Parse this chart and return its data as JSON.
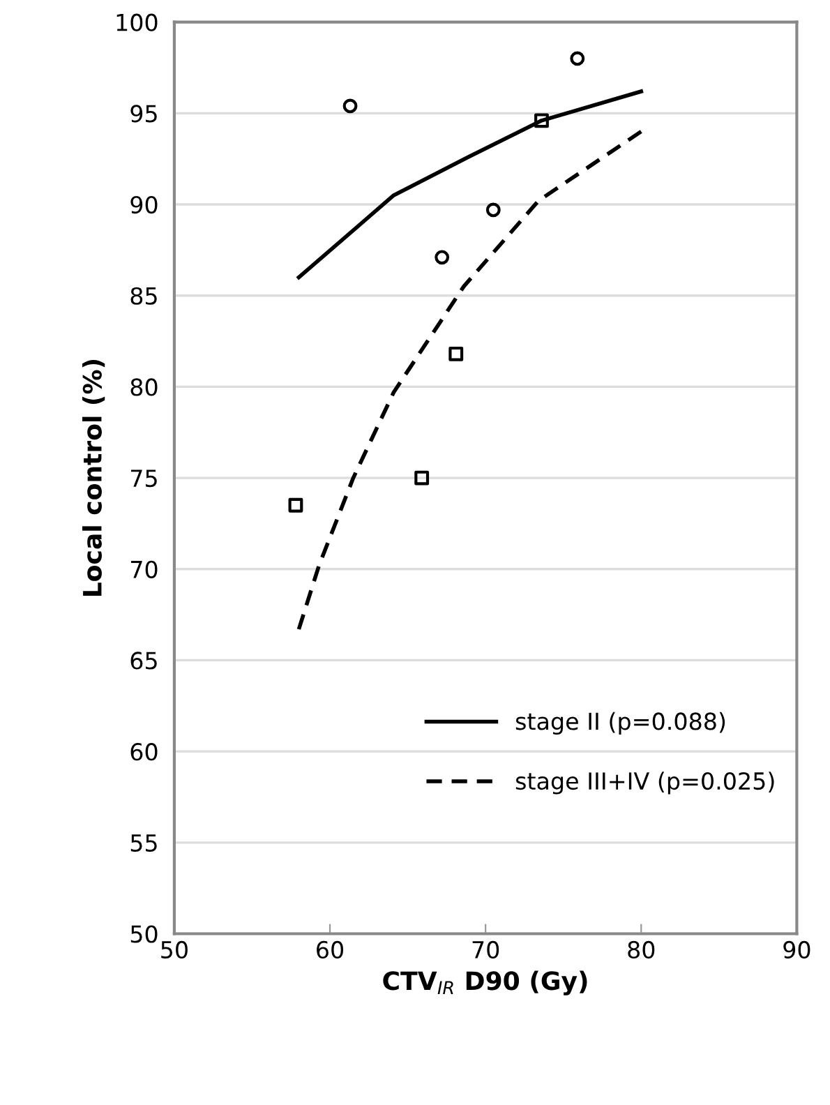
{
  "chart_data": {
    "type": "scatter",
    "xlabel": "CTV$_{IR}$ D90 (Gy)",
    "ylabel": "Local control (%)",
    "xlim": [
      50,
      90
    ],
    "xticks": [
      50,
      60,
      70,
      80,
      90
    ],
    "ylim": [
      50,
      100
    ],
    "yticks": [
      50,
      55,
      60,
      65,
      70,
      75,
      80,
      85,
      90,
      95,
      100
    ],
    "grid": "y",
    "legend": "lower right",
    "series": [
      {
        "marker": "circle",
        "color": "#000000",
        "x": [
          61.3,
          75.9,
          70.5,
          67.2
        ],
        "values": [
          95.4,
          98.0,
          89.7,
          87.1
        ]
      },
      {
        "marker": "square",
        "color": "#000000",
        "x": [
          73.6,
          68.1,
          65.9,
          57.8
        ],
        "values": [
          94.6,
          81.8,
          75.0,
          73.5
        ]
      },
      {
        "type": "line",
        "name": "stage II (p=0.088)",
        "line_style": "solid",
        "marker": "none",
        "color": "#000000",
        "x": [
          58.0,
          64.1,
          68.9,
          73.6,
          80.0
        ],
        "values": [
          86.0,
          90.5,
          92.6,
          94.6,
          96.2
        ]
      },
      {
        "type": "line",
        "name": "stage III+IV (p=0.025)",
        "line_style": "dashed",
        "marker": "none",
        "color": "#000000",
        "x": [
          58.0,
          59.3,
          61.5,
          64.1,
          68.6,
          73.4,
          80.0
        ],
        "values": [
          66.7,
          70.2,
          75.0,
          79.7,
          85.5,
          90.2,
          94.0
        ]
      }
    ]
  }
}
